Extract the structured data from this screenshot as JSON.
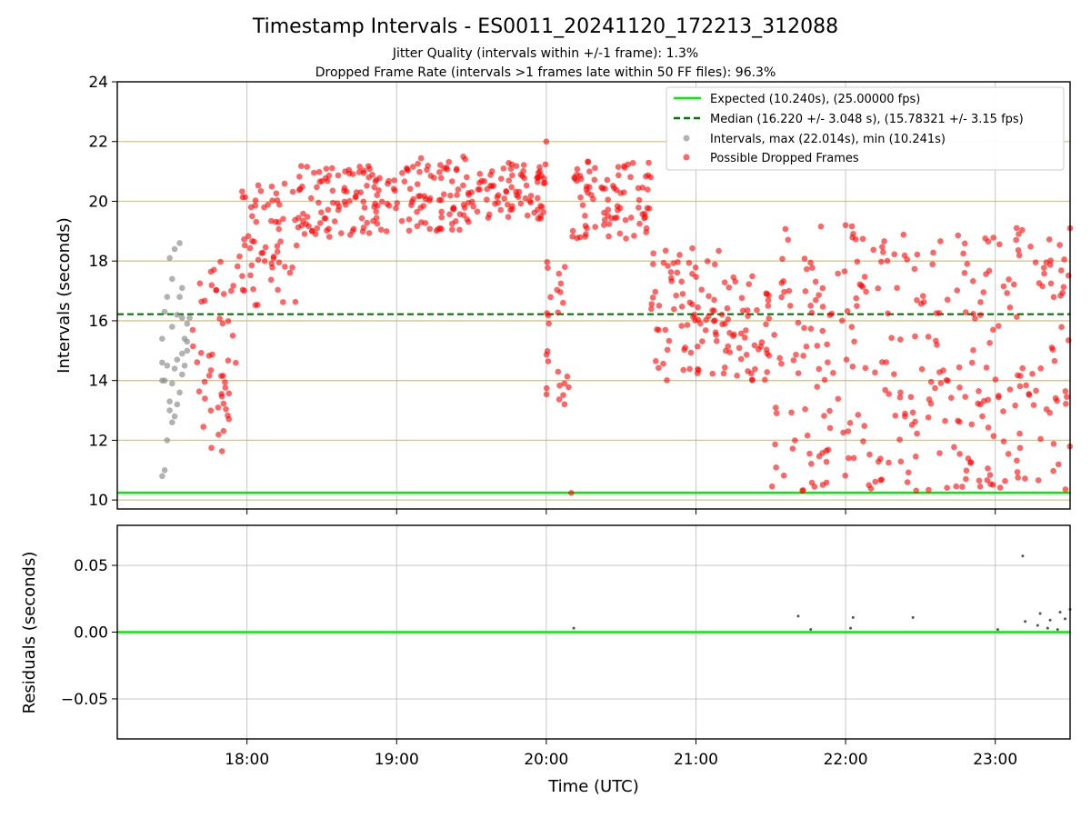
{
  "figure": {
    "title": "Timestamp Intervals - ES0011_20241120_172213_312088",
    "subtitle_1": "Jitter Quality (intervals within +/-1 frame): 1.3%",
    "subtitle_2": "Dropped Frame Rate (intervals >1 frames late within 50 FF files): 96.3%"
  },
  "colors": {
    "expected": "#00ee00",
    "median": "#007700",
    "intervals": "#888888",
    "dropped": "#ff0000",
    "horizontal_grid": "#d4c58a",
    "grid": "#b0b0b0",
    "residual_points": "#555555"
  },
  "chart_data": [
    {
      "type": "scatter",
      "panel": "intervals",
      "ylabel": "Intervals (seconds)",
      "xlim": [
        "17:08",
        "23:30"
      ],
      "ylim": [
        9.7,
        24
      ],
      "y_ticks": [
        "10",
        "12",
        "14",
        "16",
        "18",
        "20",
        "22",
        "24"
      ],
      "horizontal_grid_y": [
        10,
        12,
        14,
        16,
        18,
        20,
        22
      ],
      "x_gridlines": [
        "18:00",
        "19:00",
        "20:00",
        "21:00",
        "22:00",
        "23:00"
      ],
      "expected_interval": 10.24,
      "median_interval": 16.22,
      "legend_position": "upper right",
      "legend": {
        "expected": "Expected (10.240s), (25.00000 fps)",
        "median": "Median (16.220 +/- 3.048 s), (15.78321 +/- 3.15 fps)",
        "intervals": "Intervals, max (22.014s), min (10.241s)",
        "dropped": "Possible Dropped Frames"
      },
      "series": [
        {
          "name": "Intervals, max (22.014s), min (10.241s)",
          "x": [
            "17:26",
            "17:28",
            "17:30",
            "17:32",
            "17:34",
            "17:36",
            "17:27",
            "17:29",
            "17:31",
            "17:33",
            "17:35",
            "17:37",
            "17:26",
            "17:28",
            "17:30",
            "17:32",
            "17:34",
            "17:36",
            "17:27",
            "17:29",
            "17:31",
            "17:33",
            "17:35",
            "17:26",
            "17:28",
            "17:30",
            "17:32",
            "17:34",
            "17:36",
            "17:27",
            "17:29",
            "17:31",
            "17:33",
            "17:26",
            "17:30",
            "17:34"
          ],
          "y": [
            10.8,
            12.0,
            12.6,
            13.2,
            14.2,
            15.9,
            11.0,
            13.0,
            14.4,
            13.6,
            15.4,
            16.1,
            15.4,
            16.8,
            17.4,
            16.2,
            17.1,
            15.0,
            16.3,
            18.1,
            18.4,
            18.6,
            14.5,
            14.0,
            14.5,
            13.9,
            14.7,
            14.9,
            15.3,
            14.0,
            13.3,
            12.8,
            16.8,
            14.6,
            15.8,
            16.1
          ],
          "values_approximate": true
        },
        {
          "name": "Possible Dropped Frames",
          "pattern_description": "",
          "segments": [
            {
              "x": [
                "17:38",
                "17:56"
              ],
              "y": [
                11.6,
                18.0
              ]
            },
            {
              "x": [
                "17:56",
                "18:20"
              ],
              "y": [
                16.5,
                20.6
              ]
            },
            {
              "x": [
                "18:20",
                "19:00"
              ],
              "y": [
                18.8,
                21.2
              ]
            },
            {
              "x": [
                "19:00",
                "19:30"
              ],
              "y": [
                19.0,
                21.5
              ]
            },
            {
              "x": [
                "19:30",
                "20:00"
              ],
              "y": [
                19.4,
                21.3
              ]
            },
            {
              "x": [
                "20:00",
                "20:10"
              ],
              "y": [
                13.2,
                18.4
              ]
            },
            {
              "x": [
                "20:10",
                "20:42"
              ],
              "y": [
                18.7,
                21.4
              ]
            },
            {
              "x": [
                "20:42",
                "21:10"
              ],
              "y": [
                14.0,
                18.6
              ]
            },
            {
              "x": [
                "21:10",
                "21:30"
              ],
              "y": [
                14.0,
                17.6
              ]
            },
            {
              "x": [
                "21:30",
                "23:30"
              ],
              "y": [
                10.3,
                19.2
              ]
            }
          ],
          "notable_points": [
            {
              "x": "20:00",
              "y": 22.0
            },
            {
              "x": "20:10",
              "y": 10.24
            },
            {
              "x": "22:00",
              "y": 19.2
            },
            {
              "x": "23:30",
              "y": 19.1
            }
          ],
          "values_approximate": true
        }
      ]
    },
    {
      "type": "scatter",
      "panel": "residuals",
      "xlabel": "Time (UTC)",
      "ylabel": "Residuals (seconds)",
      "xlim": [
        "17:08",
        "23:30"
      ],
      "ylim": [
        -0.08,
        0.08
      ],
      "x_ticks": [
        "18:00",
        "19:00",
        "20:00",
        "21:00",
        "22:00",
        "23:00"
      ],
      "y_ticks": [
        "0.05",
        "0.00",
        "−0.05"
      ],
      "reference_line": 0.0,
      "series": [
        {
          "x": [
            "20:11",
            "21:41",
            "21:46",
            "22:02",
            "22:03",
            "22:27",
            "23:01",
            "23:11",
            "23:12",
            "23:17",
            "23:18",
            "23:21",
            "23:22",
            "23:25",
            "23:26",
            "23:28",
            "23:30"
          ],
          "y": [
            0.003,
            0.012,
            0.002,
            0.003,
            0.011,
            0.011,
            0.002,
            0.057,
            0.008,
            0.005,
            0.014,
            0.003,
            0.009,
            0.002,
            0.015,
            0.01,
            0.017
          ],
          "values_approximate": true
        }
      ]
    }
  ]
}
